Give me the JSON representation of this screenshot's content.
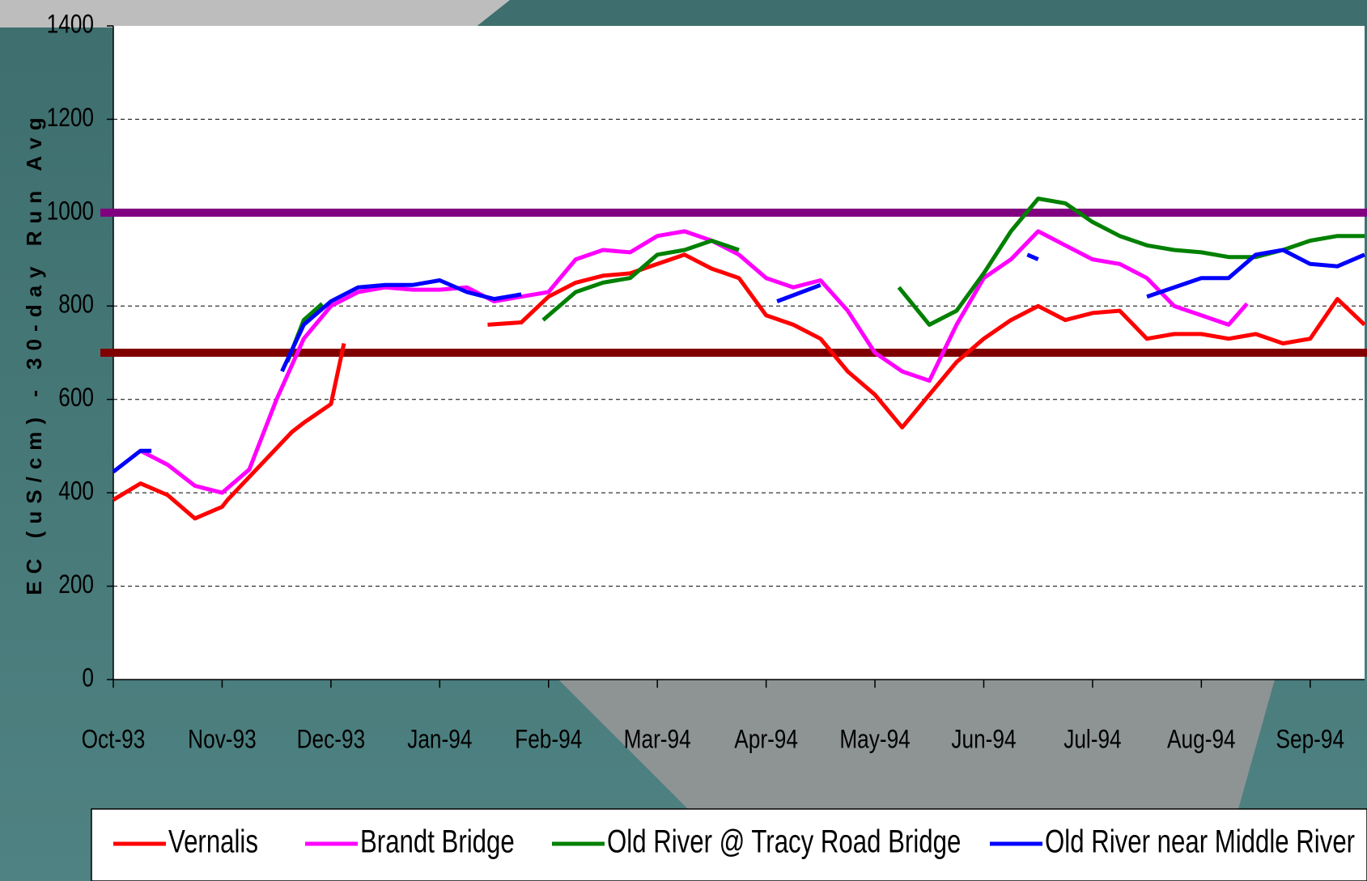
{
  "chart_data": {
    "type": "line",
    "y_label": "EC (uS/cm) - 30-day Run Avg",
    "ylim": [
      0,
      1400
    ],
    "yticks": [
      0,
      200,
      400,
      600,
      800,
      1000,
      1200,
      1400
    ],
    "xlim": [
      0,
      11.5
    ],
    "xticks": [
      {
        "value": 0,
        "label": "Oct-93"
      },
      {
        "value": 1,
        "label": "Nov-93"
      },
      {
        "value": 2,
        "label": "Dec-93"
      },
      {
        "value": 3,
        "label": "Jan-94"
      },
      {
        "value": 4,
        "label": "Feb-94"
      },
      {
        "value": 5,
        "label": "Mar-94"
      },
      {
        "value": 6,
        "label": "Apr-94"
      },
      {
        "value": 7,
        "label": "May-94"
      },
      {
        "value": 8,
        "label": "Jun-94"
      },
      {
        "value": 9,
        "label": "Jul-94"
      },
      {
        "value": 10,
        "label": "Aug-94"
      },
      {
        "value": 11,
        "label": "Sep-94"
      }
    ],
    "grid": true,
    "reference_lines": [
      {
        "value": 1000,
        "color": "#800080"
      },
      {
        "value": 700,
        "color": "#800000"
      }
    ],
    "series": [
      {
        "name": "Vernalis",
        "color": "#ff0000",
        "x": [
          0,
          0.25,
          0.5,
          0.75,
          1.0,
          1.05,
          1.64,
          1.75,
          2.0,
          2.12,
          2.5,
          3.44,
          3.75,
          4.0,
          4.25,
          4.5,
          4.75,
          5.0,
          5.25,
          5.5,
          5.75,
          6.0,
          6.25,
          6.5,
          6.75,
          7.0,
          7.25,
          7.5,
          7.75,
          8.0,
          8.25,
          8.5,
          8.75,
          9.0,
          9.25,
          9.5,
          9.75,
          10.0,
          10.25,
          10.5,
          10.75,
          11.0,
          11.25,
          11.5
        ],
        "values": [
          385,
          420,
          395,
          345,
          370,
          385,
          530,
          550,
          590,
          720,
          null,
          760,
          765,
          820,
          850,
          865,
          870,
          890,
          910,
          880,
          860,
          780,
          760,
          730,
          660,
          610,
          540,
          610,
          680,
          730,
          770,
          800,
          770,
          785,
          790,
          730,
          740,
          740,
          730,
          740,
          720,
          730,
          815,
          760
        ]
      },
      {
        "name": "Brandt Bridge",
        "color": "#ff00ff",
        "x": [
          0.25,
          0.5,
          0.75,
          1.0,
          1.25,
          1.5,
          1.75,
          2.0,
          2.25,
          2.5,
          2.75,
          3.0,
          3.25,
          3.5,
          3.75,
          4.0,
          4.25,
          4.5,
          4.75,
          5.0,
          5.25,
          5.5,
          5.75,
          6.0,
          6.25,
          6.5,
          6.75,
          7.0,
          7.25,
          7.5,
          7.75,
          8.0,
          8.25,
          8.5,
          8.75,
          9.0,
          9.25,
          9.5,
          9.75,
          10.0,
          10.25,
          10.42
        ],
        "values": [
          490,
          460,
          415,
          400,
          450,
          600,
          730,
          800,
          830,
          840,
          835,
          835,
          840,
          810,
          820,
          830,
          900,
          920,
          915,
          950,
          960,
          940,
          910,
          860,
          840,
          855,
          790,
          700,
          660,
          640,
          760,
          860,
          900,
          960,
          930,
          900,
          890,
          860,
          800,
          780,
          760,
          805
        ]
      },
      {
        "name": "Old River @ Tracy Road Bridge",
        "color": "#008000",
        "x": [
          1.6,
          1.75,
          1.92,
          2.5,
          3.95,
          4.25,
          4.5,
          4.75,
          5.0,
          5.25,
          5.5,
          5.75,
          6.5,
          7.22,
          7.5,
          7.75,
          8.0,
          8.25,
          8.5,
          8.75,
          9.0,
          9.25,
          9.5,
          9.75,
          10.0,
          10.25,
          10.5,
          10.75,
          11.0,
          11.25,
          11.5
        ],
        "values": [
          680,
          770,
          805,
          null,
          770,
          830,
          850,
          860,
          910,
          920,
          940,
          920,
          null,
          840,
          760,
          790,
          870,
          960,
          1030,
          1020,
          980,
          950,
          930,
          920,
          915,
          905,
          905,
          920,
          940,
          950,
          950
        ]
      },
      {
        "name": "Old River near Middle River",
        "color": "#0000ff",
        "x": [
          0,
          0.25,
          0.35,
          0.5,
          1.55,
          1.75,
          2.0,
          2.25,
          2.5,
          2.75,
          3.0,
          3.25,
          3.5,
          3.75,
          4.0,
          6.1,
          6.5,
          7.0,
          8.4,
          8.5,
          9.0,
          9.5,
          9.75,
          10.0,
          10.25,
          10.5,
          10.75,
          11.0,
          11.25,
          11.5
        ],
        "values": [
          445,
          490,
          490,
          null,
          660,
          760,
          810,
          840,
          845,
          845,
          855,
          830,
          815,
          825,
          null,
          810,
          845,
          null,
          910,
          900,
          null,
          820,
          840,
          860,
          860,
          910,
          920,
          890,
          885,
          910
        ]
      }
    ]
  }
}
